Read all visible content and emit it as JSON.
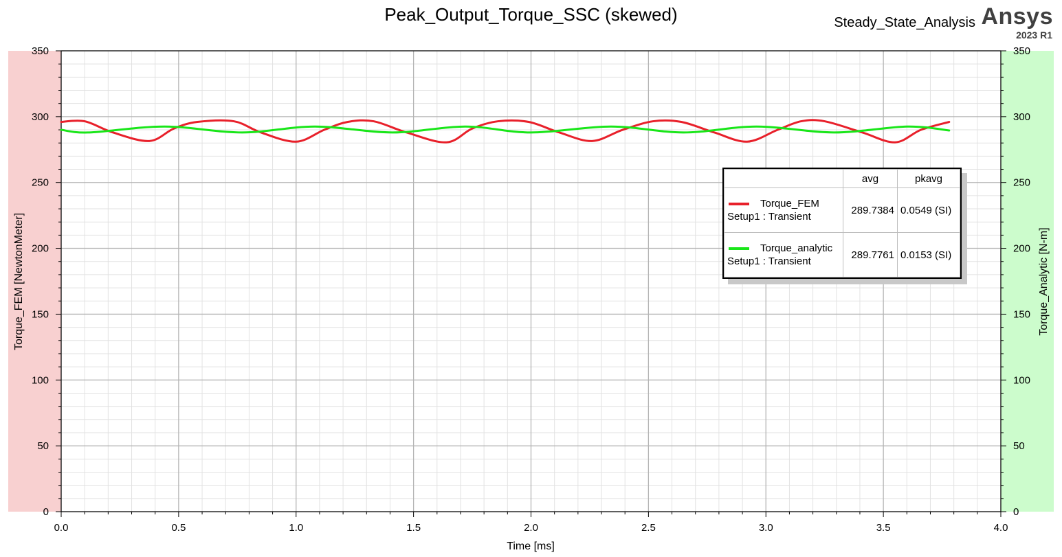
{
  "header": {
    "title": "Peak_Output_Torque_SSC (skewed)",
    "subtitle": "Steady_State_Analysis",
    "brand": "Ansys",
    "brand_version": "2023 R1"
  },
  "legend": {
    "col_avg": "avg",
    "col_pkavg": "pkavg",
    "rows": [
      {
        "name": "Torque_FEM",
        "setup": "Setup1 : Transient",
        "avg": "289.7384",
        "pkavg": "0.0549 (SI)",
        "color": "#e8202a"
      },
      {
        "name": "Torque_analytic",
        "setup": "Setup1 : Transient",
        "avg": "289.7761",
        "pkavg": "0.0153 (SI)",
        "color": "#19e619"
      }
    ]
  },
  "chart_data": {
    "type": "line",
    "xlabel": "Time [ms]",
    "ylabel": "Torque_FEM [NewtonMeter]",
    "y2label": "Torque_Analytic [N-m]",
    "xlim": [
      0,
      4
    ],
    "ylim": [
      0,
      350
    ],
    "y2lim": [
      0,
      350
    ],
    "x_ticks": [
      "0.0",
      "0.5",
      "1.0",
      "1.5",
      "2.0",
      "2.5",
      "3.0",
      "3.5",
      "4.0"
    ],
    "y_ticks": [
      "0",
      "50",
      "100",
      "150",
      "200",
      "250",
      "300",
      "350"
    ],
    "grid": true,
    "legend_position": "right",
    "left_band_color": "#f8d0d0",
    "right_band_color": "#ccfccc",
    "series": [
      {
        "name": "Torque_FEM",
        "axis": "left",
        "color": "#e8202a",
        "x": [
          0.0,
          0.1,
          0.22,
          0.375,
          0.48,
          0.58,
          0.735,
          0.85,
          1.0,
          1.12,
          1.22,
          1.33,
          1.47,
          1.64,
          1.75,
          1.86,
          1.99,
          2.12,
          2.26,
          2.39,
          2.52,
          2.64,
          2.78,
          2.92,
          3.05,
          3.15,
          3.25,
          3.41,
          3.55,
          3.66,
          3.78
        ],
        "y": [
          296,
          296.5,
          288,
          281.5,
          291,
          296,
          296.5,
          288,
          281,
          290,
          296,
          296.5,
          288,
          280.5,
          291,
          296.5,
          296,
          288,
          281.5,
          290,
          296.5,
          296,
          288,
          281,
          290,
          296.5,
          296.5,
          288,
          280.5,
          290,
          296
        ]
      },
      {
        "name": "Torque_analytic",
        "axis": "right",
        "color": "#19e619",
        "x": [
          0.0,
          0.12,
          0.44,
          0.77,
          1.08,
          1.41,
          1.72,
          2.0,
          2.34,
          2.65,
          2.96,
          3.29,
          3.6,
          3.78
        ],
        "y": [
          290,
          288,
          292.5,
          288,
          292.5,
          288,
          292.5,
          288,
          292.5,
          288,
          292.5,
          288,
          292.5,
          289.5
        ]
      }
    ]
  }
}
